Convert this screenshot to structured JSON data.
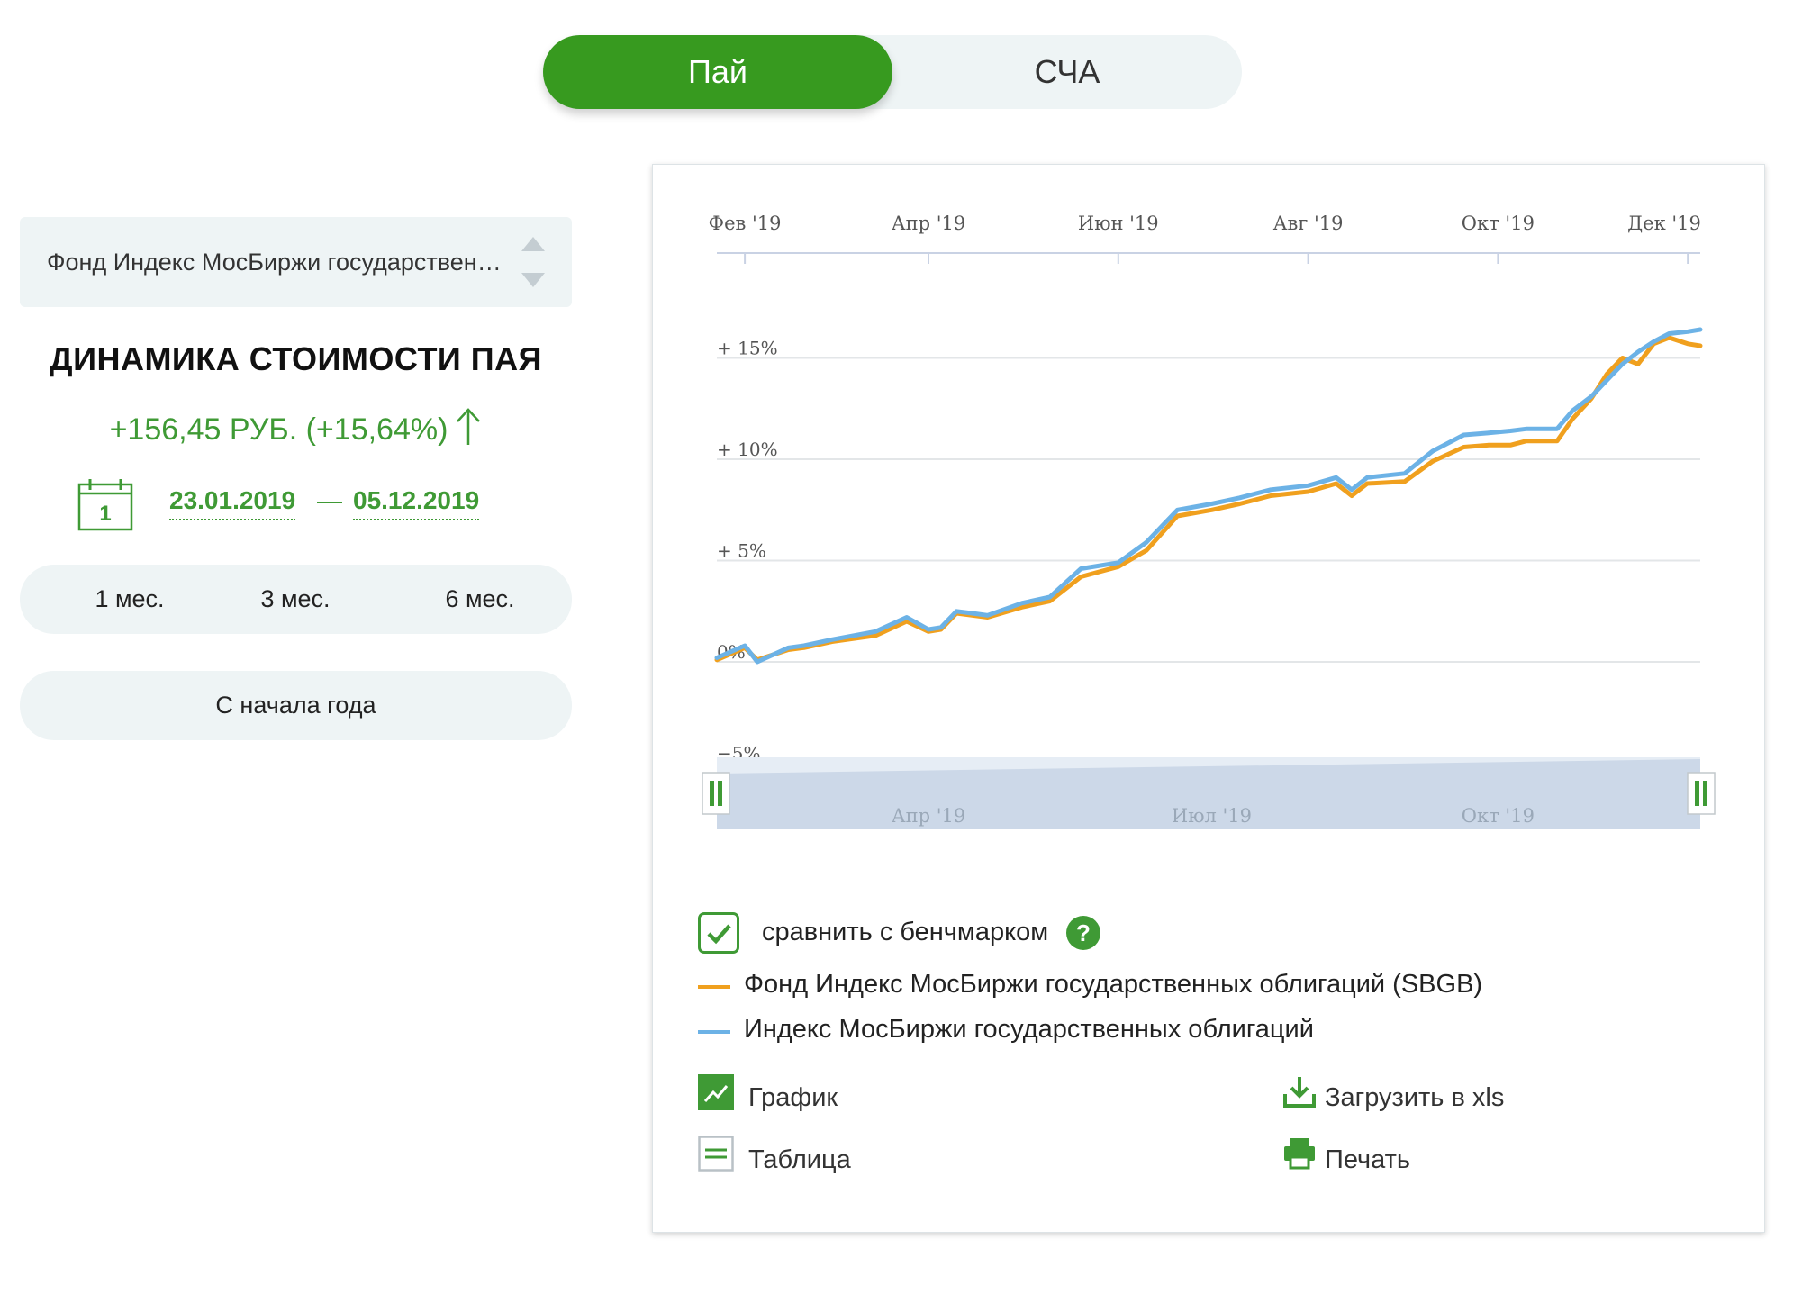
{
  "switch": {
    "active": "Пай",
    "inactive": "СЧА"
  },
  "fund_select": {
    "value": "Фонд Индекс МосБиржи государственных облигаций (SBGB)"
  },
  "dynamics": {
    "title": "ДИНАМИКА СТОИМОСТИ ПАЯ",
    "change": "+156,45 РУБ. (+15,64%)",
    "calendar_day": "1",
    "date_from": "23.01.2019",
    "date_separator": "—",
    "date_to": "05.12.2019"
  },
  "periods": [
    "1 мес.",
    "3 мес.",
    "6 мес."
  ],
  "ytd_label": "С начала года",
  "compare": {
    "label": "сравнить с бенчмарком",
    "help": "?",
    "checked": true
  },
  "legend": [
    {
      "name": "Фонд Индекс МосБиржи государственных облигаций (SBGB)",
      "color": "#f0a01e"
    },
    {
      "name": "Индекс МосБиржи государственных облигаций",
      "color": "#6cb2e6"
    }
  ],
  "actions": {
    "chart": "График",
    "table": "Таблица",
    "download": "Загрузить в xls",
    "print": "Печать"
  },
  "colors": {
    "accent": "#379a1f",
    "text_green": "#3f9a35",
    "panel_bg": "#eef4f5"
  },
  "chart_data": {
    "type": "line",
    "x_ticks": [
      "Фев '19",
      "Апр '19",
      "Июн '19",
      "Авг '19",
      "Окт '19",
      "Дек '19"
    ],
    "y_ticks": [
      "+ 15%",
      "+ 10%",
      "+ 5%",
      "0%",
      "−5%"
    ],
    "y_tick_values": [
      15,
      10,
      5,
      0,
      -5
    ],
    "ylim": [
      -5,
      17
    ],
    "x_range": [
      "2019-01-23",
      "2019-12-05"
    ],
    "navigator_ticks": [
      "Апр '19",
      "Июл '19",
      "Окт '19"
    ],
    "grid": true,
    "series": [
      {
        "name": "Фонд Индекс МосБиржи государственных облигаций (SBGB)",
        "color": "#f0a01e",
        "x": [
          "2019-01-23",
          "2019-02-01",
          "2019-02-05",
          "2019-02-15",
          "2019-02-20",
          "2019-03-01",
          "2019-03-15",
          "2019-03-25",
          "2019-04-01",
          "2019-04-05",
          "2019-04-10",
          "2019-04-15",
          "2019-04-20",
          "2019-05-01",
          "2019-05-10",
          "2019-05-20",
          "2019-06-01",
          "2019-06-10",
          "2019-06-20",
          "2019-07-01",
          "2019-07-10",
          "2019-07-20",
          "2019-08-01",
          "2019-08-10",
          "2019-08-15",
          "2019-08-20",
          "2019-09-01",
          "2019-09-10",
          "2019-09-20",
          "2019-09-28",
          "2019-10-05",
          "2019-10-10",
          "2019-10-20",
          "2019-10-25",
          "2019-10-31",
          "2019-11-05",
          "2019-11-10",
          "2019-11-15",
          "2019-11-20",
          "2019-11-25",
          "2019-12-01",
          "2019-12-05"
        ],
        "values": [
          0.1,
          0.7,
          0.1,
          0.6,
          0.7,
          1.0,
          1.3,
          2.0,
          1.5,
          1.6,
          2.4,
          2.3,
          2.2,
          2.7,
          3.0,
          4.2,
          4.7,
          5.5,
          7.2,
          7.5,
          7.8,
          8.2,
          8.4,
          8.8,
          8.2,
          8.8,
          8.9,
          9.9,
          10.6,
          10.7,
          10.7,
          10.9,
          10.9,
          12.0,
          13.0,
          14.2,
          15.0,
          14.7,
          15.7,
          16.0,
          15.7,
          15.6
        ]
      },
      {
        "name": "Индекс МосБиржи государственных облигаций",
        "color": "#6cb2e6",
        "x": [
          "2019-01-23",
          "2019-02-01",
          "2019-02-05",
          "2019-02-15",
          "2019-02-20",
          "2019-03-01",
          "2019-03-15",
          "2019-03-25",
          "2019-04-01",
          "2019-04-05",
          "2019-04-10",
          "2019-04-15",
          "2019-04-20",
          "2019-05-01",
          "2019-05-10",
          "2019-05-20",
          "2019-06-01",
          "2019-06-10",
          "2019-06-20",
          "2019-07-01",
          "2019-07-10",
          "2019-07-20",
          "2019-08-01",
          "2019-08-10",
          "2019-08-15",
          "2019-08-20",
          "2019-09-01",
          "2019-09-10",
          "2019-09-20",
          "2019-09-28",
          "2019-10-05",
          "2019-10-10",
          "2019-10-20",
          "2019-10-25",
          "2019-10-31",
          "2019-11-05",
          "2019-11-10",
          "2019-11-15",
          "2019-11-20",
          "2019-11-25",
          "2019-12-01",
          "2019-12-05"
        ],
        "values": [
          0.2,
          0.8,
          0.0,
          0.7,
          0.8,
          1.1,
          1.5,
          2.2,
          1.6,
          1.7,
          2.5,
          2.4,
          2.3,
          2.9,
          3.2,
          4.6,
          4.9,
          5.9,
          7.5,
          7.8,
          8.1,
          8.5,
          8.7,
          9.1,
          8.5,
          9.1,
          9.3,
          10.4,
          11.2,
          11.3,
          11.4,
          11.5,
          11.5,
          12.4,
          13.1,
          13.9,
          14.7,
          15.3,
          15.8,
          16.2,
          16.3,
          16.4
        ]
      }
    ]
  }
}
